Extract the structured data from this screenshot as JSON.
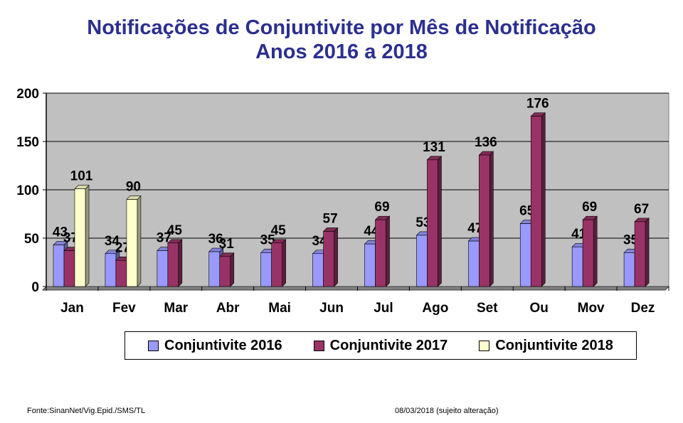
{
  "chart_data": {
    "type": "bar",
    "title": "Notificações de Conjuntivite por Mês de Notificação",
    "subtitle": "Anos 2016 a 2018",
    "xlabel": "",
    "ylabel": "",
    "ylim": [
      0,
      200
    ],
    "yticks": [
      0,
      50,
      100,
      150,
      200
    ],
    "grid": true,
    "legend_position": "bottom",
    "categories": [
      "Jan",
      "Fev",
      "Mar",
      "Abr",
      "Mai",
      "Jun",
      "Jul",
      "Ago",
      "Set",
      "Ou",
      "Mov",
      "Dez"
    ],
    "series": [
      {
        "name": "Conjuntivite 2016",
        "color": "#9999ff",
        "values": [
          43,
          34,
          37,
          36,
          35,
          34,
          44,
          53,
          47,
          65,
          41,
          35
        ]
      },
      {
        "name": "Conjuntivite 2017",
        "color": "#993366",
        "values": [
          37,
          27,
          45,
          31,
          45,
          57,
          69,
          131,
          136,
          176,
          69,
          67
        ]
      },
      {
        "name": "Conjuntivite 2018",
        "color": "#ffffcc",
        "values": [
          101,
          90,
          null,
          null,
          null,
          null,
          null,
          null,
          null,
          null,
          null,
          null
        ]
      }
    ]
  },
  "footer": {
    "source": "Fonte:SinanNet/Vig.Epid./SMS/TL",
    "date": "08/03/2018 (sujeito alteração)"
  }
}
